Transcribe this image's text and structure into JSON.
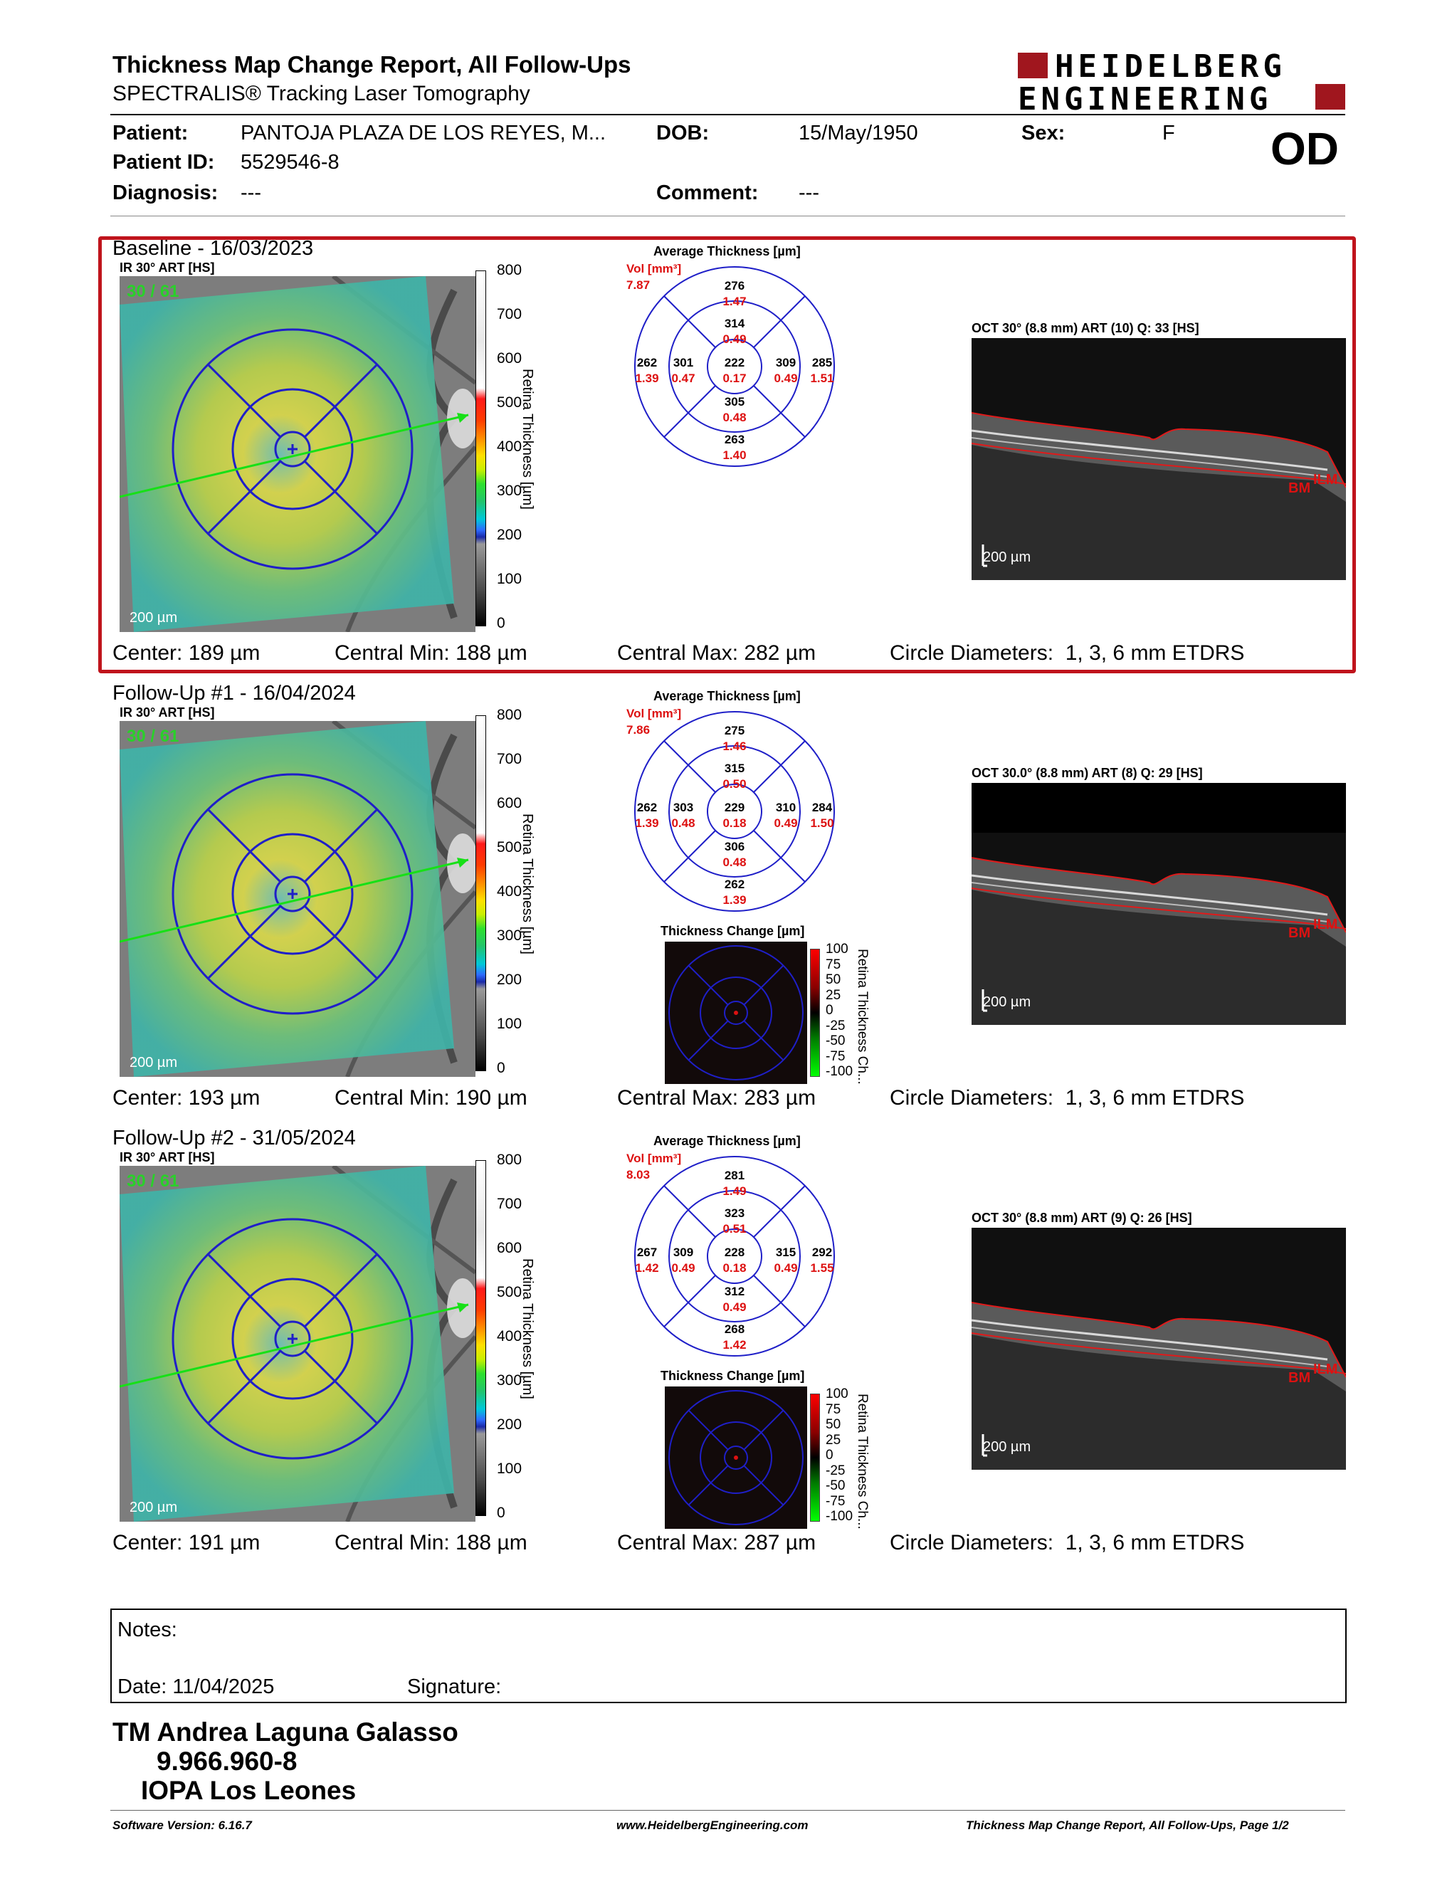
{
  "header": {
    "title": "Thickness Map Change Report, All Follow-Ups",
    "subtitle": "SPECTRALIS® Tracking Laser Tomography",
    "logo_line1": "HEIDELBERG",
    "logo_line2": "ENGINEERING"
  },
  "patient": {
    "patient_label": "Patient:",
    "patient_value": "PANTOJA PLAZA DE LOS REYES, M...",
    "dob_label": "DOB:",
    "dob_value": "15/May/1950",
    "sex_label": "Sex:",
    "sex_value": "F",
    "id_label": "Patient ID:",
    "id_value": "5529546-8",
    "diagnosis_label": "Diagnosis:",
    "diagnosis_value": "---",
    "comment_label": "Comment:",
    "comment_value": "---",
    "eye": "OD"
  },
  "common": {
    "ir_label": "IR 30° ART [HS]",
    "fundus_quality": "30 / 61",
    "fundus_scale": "200 µm",
    "avg_thickness_label": "Average Thickness [µm]",
    "vol_label": "Vol [mm³]",
    "colorbar_ticks": [
      "800",
      "700",
      "600",
      "500",
      "400",
      "300",
      "200",
      "100",
      "0"
    ],
    "colorbar_label": "Retina Thickness [µm]",
    "oct_scale": "200 µm",
    "thickness_change_label": "Thickness Change [µm]",
    "change_ticks": [
      "100",
      "75",
      "50",
      "25",
      "0",
      "-25",
      "-50",
      "-75",
      "-100"
    ],
    "change_bar_label": "Retina Thickness Ch...",
    "bm_label": "BM",
    "ilm_label": "ILM"
  },
  "sections": [
    {
      "title": "Baseline - 16/03/2023",
      "oct_label": "OCT 30° (8.8 mm) ART (10) Q: 33 [HS]",
      "vol": "7.87",
      "thickness": {
        "center": "222",
        "inner_top": "314",
        "inner_bottom": "305",
        "inner_left": "301",
        "inner_right": "309",
        "outer_top": "276",
        "outer_bottom": "263",
        "outer_left": "262",
        "outer_right": "285"
      },
      "volume": {
        "center": "0.17",
        "inner_top": "0.49",
        "inner_bottom": "0.48",
        "inner_left": "0.47",
        "inner_right": "0.49",
        "outer_top": "1.47",
        "outer_bottom": "1.40",
        "outer_left": "1.39",
        "outer_right": "1.51"
      },
      "center": "Center: 189 µm",
      "central_min": "Central Min: 188 µm",
      "central_max": "Central Max: 282 µm",
      "circle_diam": "Circle Diameters:  1, 3, 6 mm ETDRS"
    },
    {
      "title": "Follow-Up #1 - 16/04/2024",
      "oct_label": "OCT 30.0° (8.8 mm) ART (8) Q: 29 [HS]",
      "vol": "7.86",
      "thickness": {
        "center": "229",
        "inner_top": "315",
        "inner_bottom": "306",
        "inner_left": "303",
        "inner_right": "310",
        "outer_top": "275",
        "outer_bottom": "262",
        "outer_left": "262",
        "outer_right": "284"
      },
      "volume": {
        "center": "0.18",
        "inner_top": "0.50",
        "inner_bottom": "0.48",
        "inner_left": "0.48",
        "inner_right": "0.49",
        "outer_top": "1.46",
        "outer_bottom": "1.39",
        "outer_left": "1.39",
        "outer_right": "1.50"
      },
      "center": "Center: 193 µm",
      "central_min": "Central Min: 190 µm",
      "central_max": "Central Max: 283 µm",
      "circle_diam": "Circle Diameters:  1, 3, 6 mm ETDRS"
    },
    {
      "title": "Follow-Up #2 - 31/05/2024",
      "oct_label": "OCT 30° (8.8 mm) ART (9) Q: 26 [HS]",
      "vol": "8.03",
      "thickness": {
        "center": "228",
        "inner_top": "323",
        "inner_bottom": "312",
        "inner_left": "309",
        "inner_right": "315",
        "outer_top": "281",
        "outer_bottom": "268",
        "outer_left": "267",
        "outer_right": "292"
      },
      "volume": {
        "center": "0.18",
        "inner_top": "0.51",
        "inner_bottom": "0.49",
        "inner_left": "0.49",
        "inner_right": "0.49",
        "outer_top": "1.49",
        "outer_bottom": "1.42",
        "outer_left": "1.42",
        "outer_right": "1.55"
      },
      "center": "Center: 191 µm",
      "central_min": "Central Min: 188 µm",
      "central_max": "Central Max: 287 µm",
      "circle_diam": "Circle Diameters:  1, 3, 6 mm ETDRS"
    }
  ],
  "notes": {
    "label": "Notes:",
    "date": "Date: 11/04/2025",
    "signature": "Signature:"
  },
  "technician": {
    "name": "TM Andrea Laguna Galasso",
    "rut": "9.966.960-8",
    "institution": "IOPA Los Leones"
  },
  "footer": {
    "software": "Software Version: 6.16.7",
    "website": "www.HeidelbergEngineering.com",
    "page": "Thickness Map Change Report, All Follow-Ups, Page 1/2"
  },
  "colors": {
    "accent_red": "#c0141c",
    "logo_red": "#a0161e",
    "grid_blue": "#1f1fc8"
  }
}
